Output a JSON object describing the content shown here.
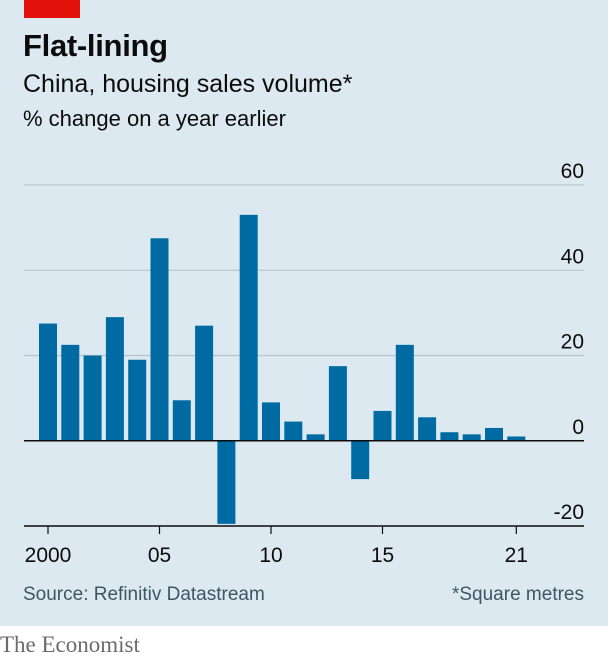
{
  "header": {
    "title": "Flat-lining",
    "subtitle": "China, housing sales volume*",
    "units": "% change on a year earlier"
  },
  "footer": {
    "source": "Source: Refinitiv Datastream",
    "footnote": "*Square metres",
    "brand": "The Economist"
  },
  "colors": {
    "bar": "#006ba2",
    "panel": "#dde9f0",
    "gridline": "#b7c6ce",
    "accent": "#e3120b"
  },
  "chart_data": {
    "type": "bar",
    "categories": [
      2000,
      2001,
      2002,
      2003,
      2004,
      2005,
      2006,
      2007,
      2008,
      2009,
      2010,
      2011,
      2012,
      2013,
      2014,
      2015,
      2016,
      2017,
      2018,
      2019,
      2020,
      2021
    ],
    "values": [
      27.5,
      22.5,
      20,
      29,
      19,
      47.5,
      9.5,
      27,
      -19.5,
      53,
      9,
      4.5,
      1.5,
      17.5,
      -9,
      7,
      22.5,
      5.5,
      2,
      1.5,
      3,
      1
    ],
    "x_tick_labels": [
      {
        "year": 2000,
        "label": "2000"
      },
      {
        "year": 2005,
        "label": "05"
      },
      {
        "year": 2010,
        "label": "10"
      },
      {
        "year": 2015,
        "label": "15"
      },
      {
        "year": 2021,
        "label": "21"
      }
    ],
    "y_ticks": [
      60,
      40,
      20,
      0,
      -20
    ],
    "ylim": [
      -20,
      60
    ],
    "grid": true,
    "y_axis_side": "right"
  }
}
